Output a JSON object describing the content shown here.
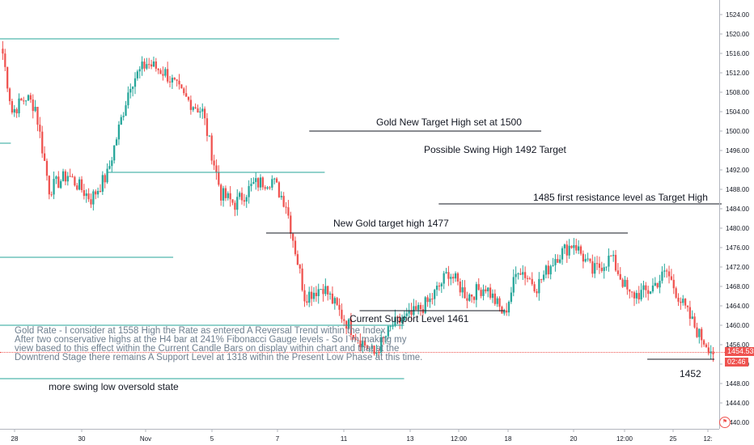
{
  "chart_data": {
    "type": "candlestick",
    "symbol": "Gold",
    "timeframe": "H4",
    "ylim": [
      1438,
      1527
    ],
    "y_ticks": [
      1440,
      1444,
      1448,
      1452,
      1456,
      1460,
      1464,
      1468,
      1472,
      1476,
      1480,
      1484,
      1488,
      1492,
      1496,
      1500,
      1504,
      1508,
      1512,
      1516,
      1520,
      1524
    ],
    "x_tick_labels": [
      "28",
      "30",
      "Nov",
      "5",
      "7",
      "11",
      "13",
      "12:00",
      "18",
      "20",
      "12:00",
      "25",
      "12:"
    ],
    "anchors": [
      {
        "bar": 0,
        "price": 1516
      },
      {
        "bar": 4,
        "price": 1504
      },
      {
        "bar": 10,
        "price": 1507
      },
      {
        "bar": 14,
        "price": 1505
      },
      {
        "bar": 20,
        "price": 1488
      },
      {
        "bar": 28,
        "price": 1491
      },
      {
        "bar": 38,
        "price": 1486
      },
      {
        "bar": 45,
        "price": 1491
      },
      {
        "bar": 55,
        "price": 1510
      },
      {
        "bar": 62,
        "price": 1514
      },
      {
        "bar": 70,
        "price": 1512
      },
      {
        "bar": 78,
        "price": 1507
      },
      {
        "bar": 86,
        "price": 1504
      },
      {
        "bar": 94,
        "price": 1487
      },
      {
        "bar": 100,
        "price": 1485
      },
      {
        "bar": 108,
        "price": 1489
      },
      {
        "bar": 116,
        "price": 1490
      },
      {
        "bar": 122,
        "price": 1485
      },
      {
        "bar": 130,
        "price": 1466
      },
      {
        "bar": 138,
        "price": 1468
      },
      {
        "bar": 146,
        "price": 1462
      },
      {
        "bar": 152,
        "price": 1458
      },
      {
        "bar": 160,
        "price": 1454
      },
      {
        "bar": 168,
        "price": 1460
      },
      {
        "bar": 176,
        "price": 1462
      },
      {
        "bar": 184,
        "price": 1465
      },
      {
        "bar": 192,
        "price": 1471
      },
      {
        "bar": 200,
        "price": 1466
      },
      {
        "bar": 208,
        "price": 1468
      },
      {
        "bar": 216,
        "price": 1462
      },
      {
        "bar": 222,
        "price": 1472
      },
      {
        "bar": 230,
        "price": 1468
      },
      {
        "bar": 238,
        "price": 1474
      },
      {
        "bar": 246,
        "price": 1477
      },
      {
        "bar": 254,
        "price": 1471
      },
      {
        "bar": 262,
        "price": 1474
      },
      {
        "bar": 270,
        "price": 1466
      },
      {
        "bar": 278,
        "price": 1467
      },
      {
        "bar": 286,
        "price": 1471
      },
      {
        "bar": 292,
        "price": 1465
      },
      {
        "bar": 300,
        "price": 1458
      },
      {
        "bar": 306,
        "price": 1454.5
      }
    ],
    "last_price": "1454.53",
    "countdown": "02:46",
    "horizontal_lines": [
      {
        "price": 1519,
        "x0": 0.0,
        "x1": 0.47,
        "color": "#26a69a"
      },
      {
        "price": 1491.5,
        "x0": 0.15,
        "x1": 0.45,
        "color": "#26a69a"
      },
      {
        "price": 1474,
        "x0": 0.0,
        "x1": 0.24,
        "color": "#26a69a"
      },
      {
        "price": 1460,
        "x0": 0.0,
        "x1": 0.56,
        "color": "#26a69a"
      },
      {
        "price": 1449,
        "x0": 0.0,
        "x1": 0.56,
        "color": "#26a69a"
      },
      {
        "price": 1497.5,
        "x0": 0.0,
        "x1": 0.015,
        "color": "#26a69a"
      },
      {
        "price": 1500,
        "x0": 0.43,
        "x1": 0.75,
        "color": "#131722"
      },
      {
        "price": 1485,
        "x0": 0.61,
        "x1": 1.0,
        "color": "#131722"
      },
      {
        "price": 1479,
        "x0": 0.37,
        "x1": 0.87,
        "color": "#131722"
      },
      {
        "price": 1463,
        "x0": 0.5,
        "x1": 0.7,
        "color": "#131722"
      },
      {
        "price": 1453,
        "x0": 0.9,
        "x1": 0.99,
        "color": "#131722"
      }
    ]
  },
  "annotations": {
    "target_1500": "Gold New Target High set at 1500",
    "swing_1492": "Possible Swing High 1492 Target",
    "resistance_1485": "1485 first resistance level as Target High",
    "target_1477": "New Gold target high 1477",
    "support_1461": "Current Support Level 1461",
    "level_1452": "1452",
    "swing_low": "more swing low oversold state"
  },
  "note": {
    "line1": "Gold Rate - I consider at 1558 High the Rate as entered A Reversal Trend within the Index -",
    "line2": "After two conservative highs at the H4 bar at 241% Fibonacci Gauge levels - So I`m making my",
    "line3": "view based to this effect within the Current Candle Bars on display within chart and that at the",
    "line4": "Downtrend Stage there remains A Support Level at 1318 within the Present Low Phase at this time."
  },
  "colors": {
    "up": "#26a69a",
    "down": "#ef5350",
    "teal_line": "#26a69a",
    "grid": "#e0e3eb",
    "text": "#131722"
  }
}
